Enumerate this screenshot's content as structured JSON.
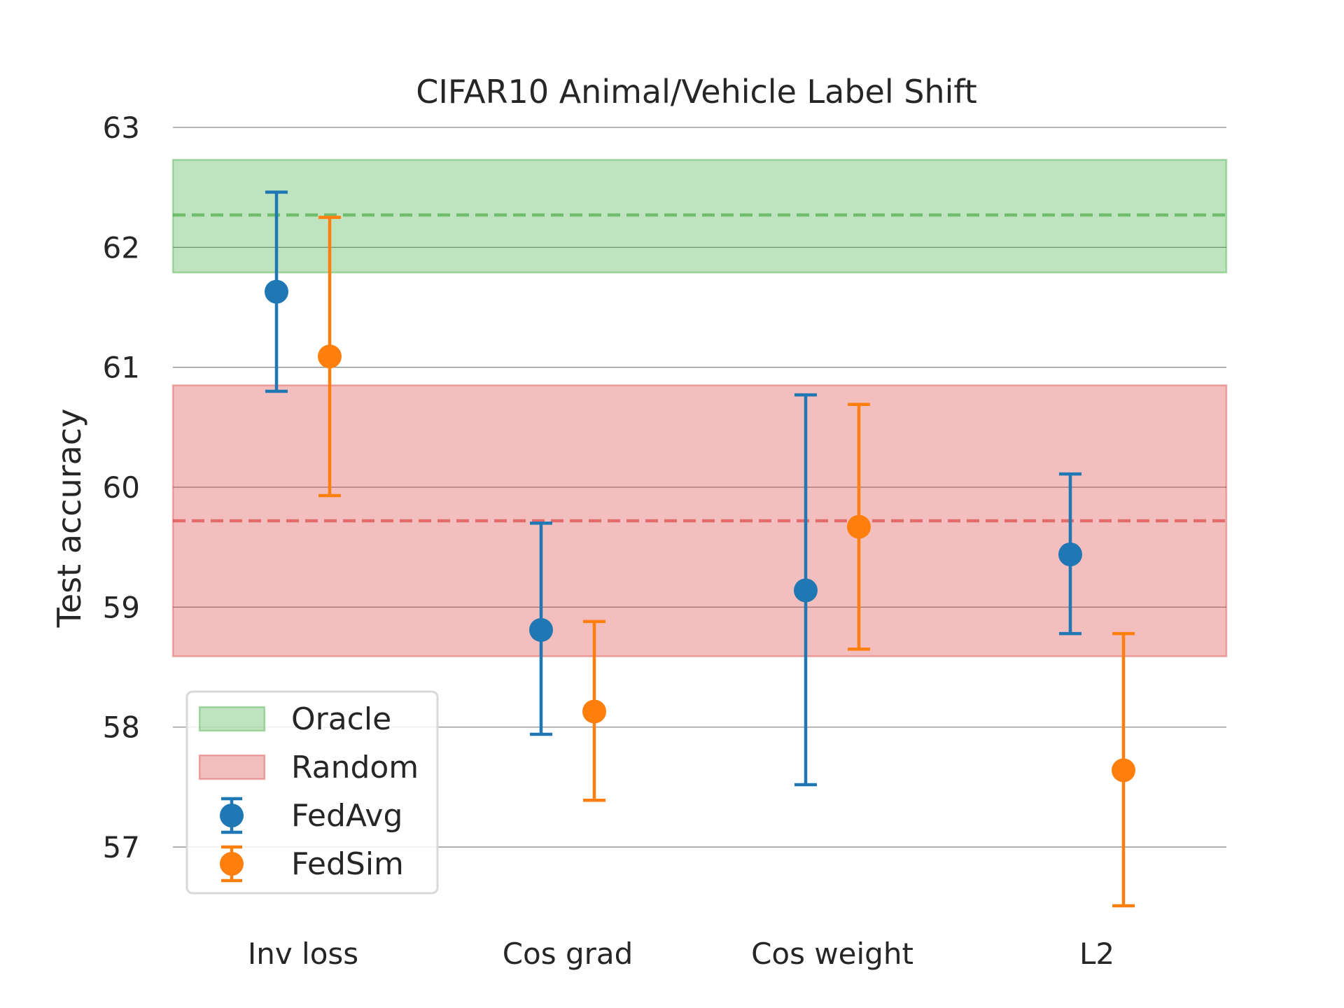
{
  "chart_data": {
    "type": "scatter",
    "title": "CIFAR10 Animal/Vehicle Label Shift",
    "xlabel": "",
    "ylabel": "Test accuracy",
    "categories": [
      "Inv loss",
      "Cos grad",
      "Cos weight",
      "L2"
    ],
    "ylim": [
      56.3,
      63.0
    ],
    "yticks": [
      57,
      58,
      59,
      60,
      61,
      62,
      63
    ],
    "grid": true,
    "legend_position": "lower-left",
    "bands": [
      {
        "name": "Oracle",
        "mean": 62.27,
        "lower": 61.79,
        "upper": 62.73,
        "color": "#2ca02c"
      },
      {
        "name": "Random",
        "mean": 59.72,
        "lower": 58.59,
        "upper": 60.85,
        "color": "#d62728"
      }
    ],
    "series": [
      {
        "name": "FedAvg",
        "color": "#1f77b4",
        "values": [
          61.63,
          58.81,
          59.14,
          59.44
        ],
        "lower": [
          60.8,
          57.94,
          57.52,
          58.78
        ],
        "upper": [
          62.46,
          59.7,
          60.77,
          60.11
        ]
      },
      {
        "name": "FedSim",
        "color": "#ff7f0e",
        "values": [
          61.09,
          58.13,
          59.67,
          57.64
        ],
        "lower": [
          59.93,
          57.39,
          58.65,
          56.51
        ],
        "upper": [
          62.25,
          58.88,
          60.69,
          58.78
        ]
      }
    ]
  }
}
